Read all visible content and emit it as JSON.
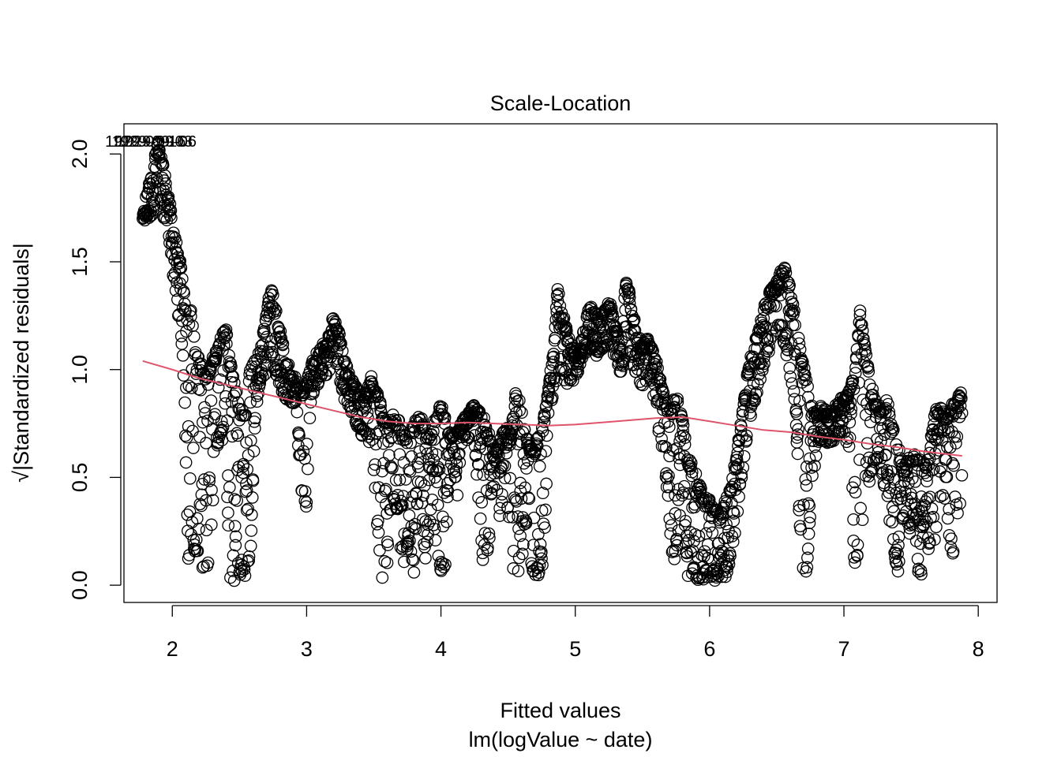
{
  "chart_data": {
    "type": "scatter",
    "title": "Scale-Location",
    "xlabel": "Fitted values",
    "xlabel_sub": "lm(logValue ~ date)",
    "ylabel": "√|Standardized residuals|",
    "xlim": [
      1.64,
      8.14
    ],
    "ylim": [
      -0.08,
      2.14
    ],
    "x_ticks": [
      2,
      3,
      4,
      5,
      6,
      7,
      8
    ],
    "y_ticks": [
      0.0,
      0.5,
      1.0,
      1.5,
      2.0
    ],
    "x_tick_labels": [
      "2",
      "3",
      "4",
      "5",
      "6",
      "7",
      "8"
    ],
    "y_tick_labels": [
      "0.0",
      "0.5",
      "1.0",
      "1.5",
      "2.0"
    ],
    "point_color": "#000000",
    "smooth_color": "#DF536B",
    "annotations": [
      {
        "text": "1929-09-16",
        "x": 1.8,
        "y": 2.06
      },
      {
        "text": "1929-09-03",
        "x": 1.85,
        "y": 2.06
      },
      {
        "text": "1929-09-06",
        "x": 1.88,
        "y": 2.06
      }
    ],
    "upper_envelope": [
      [
        1.78,
        1.73
      ],
      [
        1.82,
        1.86
      ],
      [
        1.86,
        1.95
      ],
      [
        1.89,
        2.06
      ],
      [
        1.93,
        1.96
      ],
      [
        1.96,
        1.85
      ],
      [
        1.99,
        1.75
      ],
      [
        2.02,
        1.62
      ],
      [
        2.05,
        1.55
      ],
      [
        2.08,
        1.4
      ],
      [
        2.1,
        1.28
      ],
      [
        2.12,
        1.24
      ],
      [
        2.14,
        1.3
      ],
      [
        2.17,
        1.1
      ],
      [
        2.2,
        1.06
      ],
      [
        2.24,
        1.0
      ],
      [
        2.28,
        1.02
      ],
      [
        2.32,
        1.1
      ],
      [
        2.36,
        1.16
      ],
      [
        2.4,
        1.19
      ],
      [
        2.43,
        1.05
      ],
      [
        2.47,
        0.92
      ],
      [
        2.5,
        0.85
      ],
      [
        2.54,
        0.8
      ],
      [
        2.58,
        1.0
      ],
      [
        2.62,
        1.06
      ],
      [
        2.66,
        1.1
      ],
      [
        2.7,
        1.28
      ],
      [
        2.73,
        1.4
      ],
      [
        2.76,
        1.32
      ],
      [
        2.8,
        1.2
      ],
      [
        2.84,
        1.08
      ],
      [
        2.88,
        1.0
      ],
      [
        2.92,
        0.96
      ],
      [
        2.96,
        0.92
      ],
      [
        3.0,
        0.95
      ],
      [
        3.03,
        1.02
      ],
      [
        3.07,
        1.08
      ],
      [
        3.12,
        1.12
      ],
      [
        3.16,
        1.15
      ],
      [
        3.2,
        1.26
      ],
      [
        3.24,
        1.18
      ],
      [
        3.28,
        1.05
      ],
      [
        3.32,
        0.98
      ],
      [
        3.36,
        0.93
      ],
      [
        3.4,
        0.9
      ],
      [
        3.44,
        0.88
      ],
      [
        3.48,
        0.97
      ],
      [
        3.52,
        0.92
      ],
      [
        3.56,
        0.82
      ],
      [
        3.6,
        0.75
      ],
      [
        3.64,
        0.8
      ],
      [
        3.68,
        0.78
      ],
      [
        3.72,
        0.7
      ],
      [
        3.76,
        0.72
      ],
      [
        3.8,
        0.76
      ],
      [
        3.84,
        0.8
      ],
      [
        3.88,
        0.74
      ],
      [
        3.92,
        0.68
      ],
      [
        3.96,
        0.8
      ],
      [
        4.0,
        0.84
      ],
      [
        4.04,
        0.78
      ],
      [
        4.08,
        0.7
      ],
      [
        4.12,
        0.72
      ],
      [
        4.16,
        0.77
      ],
      [
        4.2,
        0.8
      ],
      [
        4.24,
        0.84
      ],
      [
        4.28,
        0.82
      ],
      [
        4.32,
        0.78
      ],
      [
        4.36,
        0.7
      ],
      [
        4.4,
        0.62
      ],
      [
        4.44,
        0.68
      ],
      [
        4.48,
        0.74
      ],
      [
        4.52,
        0.7
      ],
      [
        4.56,
        0.92
      ],
      [
        4.6,
        0.82
      ],
      [
        4.64,
        0.7
      ],
      [
        4.68,
        0.64
      ],
      [
        4.72,
        0.7
      ],
      [
        4.76,
        0.76
      ],
      [
        4.8,
        0.92
      ],
      [
        4.84,
        1.1
      ],
      [
        4.87,
        1.4
      ],
      [
        4.9,
        1.28
      ],
      [
        4.94,
        1.18
      ],
      [
        4.98,
        1.1
      ],
      [
        5.02,
        1.06
      ],
      [
        5.06,
        1.2
      ],
      [
        5.1,
        1.3
      ],
      [
        5.14,
        1.28
      ],
      [
        5.18,
        1.24
      ],
      [
        5.22,
        1.3
      ],
      [
        5.26,
        1.32
      ],
      [
        5.3,
        1.2
      ],
      [
        5.34,
        1.14
      ],
      [
        5.38,
        1.44
      ],
      [
        5.42,
        1.3
      ],
      [
        5.46,
        1.18
      ],
      [
        5.5,
        1.12
      ],
      [
        5.54,
        1.16
      ],
      [
        5.58,
        1.1
      ],
      [
        5.62,
        1.0
      ],
      [
        5.66,
        0.9
      ],
      [
        5.7,
        0.8
      ],
      [
        5.73,
        0.86
      ],
      [
        5.76,
        0.88
      ],
      [
        5.8,
        0.76
      ],
      [
        5.84,
        0.6
      ],
      [
        5.88,
        0.56
      ],
      [
        5.92,
        0.48
      ],
      [
        5.96,
        0.42
      ],
      [
        6.0,
        0.4
      ],
      [
        6.04,
        0.36
      ],
      [
        6.08,
        0.34
      ],
      [
        6.12,
        0.4
      ],
      [
        6.16,
        0.48
      ],
      [
        6.2,
        0.6
      ],
      [
        6.24,
        0.8
      ],
      [
        6.28,
        0.98
      ],
      [
        6.32,
        1.1
      ],
      [
        6.36,
        1.18
      ],
      [
        6.4,
        1.28
      ],
      [
        6.44,
        1.36
      ],
      [
        6.48,
        1.4
      ],
      [
        6.52,
        1.45
      ],
      [
        6.56,
        1.48
      ],
      [
        6.6,
        1.38
      ],
      [
        6.64,
        1.24
      ],
      [
        6.68,
        1.08
      ],
      [
        6.72,
        0.96
      ],
      [
        6.76,
        0.84
      ],
      [
        6.8,
        0.82
      ],
      [
        6.84,
        0.84
      ],
      [
        6.88,
        0.8
      ],
      [
        6.92,
        0.82
      ],
      [
        6.96,
        0.86
      ],
      [
        7.0,
        0.88
      ],
      [
        7.04,
        0.94
      ],
      [
        7.08,
        0.98
      ],
      [
        7.12,
        1.28
      ],
      [
        7.16,
        1.1
      ],
      [
        7.2,
        0.94
      ],
      [
        7.24,
        0.86
      ],
      [
        7.28,
        0.82
      ],
      [
        7.32,
        0.88
      ],
      [
        7.36,
        0.74
      ],
      [
        7.4,
        0.66
      ],
      [
        7.44,
        0.56
      ],
      [
        7.48,
        0.6
      ],
      [
        7.52,
        0.62
      ],
      [
        7.56,
        0.6
      ],
      [
        7.6,
        0.56
      ],
      [
        7.64,
        0.66
      ],
      [
        7.68,
        0.82
      ],
      [
        7.72,
        0.84
      ],
      [
        7.76,
        0.78
      ],
      [
        7.8,
        0.84
      ],
      [
        7.84,
        0.86
      ],
      [
        7.88,
        0.92
      ]
    ],
    "lower_envelope": [
      [
        1.78,
        1.67
      ],
      [
        1.82,
        1.7
      ],
      [
        1.86,
        1.72
      ],
      [
        1.89,
        1.78
      ],
      [
        1.93,
        1.7
      ],
      [
        1.96,
        1.62
      ],
      [
        1.99,
        1.5
      ],
      [
        2.02,
        1.38
      ],
      [
        2.05,
        1.22
      ],
      [
        2.08,
        1.05
      ],
      [
        2.1,
        0.6
      ],
      [
        2.12,
        0.1
      ],
      [
        2.14,
        0.2
      ],
      [
        2.17,
        0.15
      ],
      [
        2.2,
        0.12
      ],
      [
        2.24,
        0.04
      ],
      [
        2.28,
        0.1
      ],
      [
        2.32,
        0.6
      ],
      [
        2.36,
        0.7
      ],
      [
        2.4,
        0.56
      ],
      [
        2.43,
        0.02
      ],
      [
        2.47,
        0.02
      ],
      [
        2.5,
        0.04
      ],
      [
        2.54,
        0.04
      ],
      [
        2.58,
        0.1
      ],
      [
        2.62,
        0.8
      ],
      [
        2.66,
        0.96
      ],
      [
        2.7,
        0.98
      ],
      [
        2.73,
        1.06
      ],
      [
        2.76,
        1.0
      ],
      [
        2.8,
        0.92
      ],
      [
        2.84,
        0.86
      ],
      [
        2.88,
        0.84
      ],
      [
        2.92,
        0.82
      ],
      [
        2.96,
        0.4
      ],
      [
        3.0,
        0.36
      ],
      [
        3.03,
        0.84
      ],
      [
        3.07,
        0.92
      ],
      [
        3.12,
        0.96
      ],
      [
        3.16,
        0.98
      ],
      [
        3.2,
        1.06
      ],
      [
        3.24,
        0.96
      ],
      [
        3.28,
        0.86
      ],
      [
        3.32,
        0.8
      ],
      [
        3.36,
        0.74
      ],
      [
        3.4,
        0.7
      ],
      [
        3.44,
        0.68
      ],
      [
        3.48,
        0.62
      ],
      [
        3.52,
        0.3
      ],
      [
        3.56,
        0.02
      ],
      [
        3.6,
        0.1
      ],
      [
        3.64,
        0.4
      ],
      [
        3.68,
        0.3
      ],
      [
        3.72,
        0.05
      ],
      [
        3.76,
        0.2
      ],
      [
        3.8,
        0.04
      ],
      [
        3.84,
        0.6
      ],
      [
        3.88,
        0.1
      ],
      [
        3.92,
        0.3
      ],
      [
        3.96,
        0.2
      ],
      [
        4.0,
        0.06
      ],
      [
        4.04,
        0.1
      ],
      [
        4.08,
        0.6
      ],
      [
        4.12,
        0.4
      ],
      [
        4.16,
        0.7
      ],
      [
        4.2,
        0.66
      ],
      [
        4.24,
        0.72
      ],
      [
        4.28,
        0.4
      ],
      [
        4.32,
        0.04
      ],
      [
        4.36,
        0.2
      ],
      [
        4.4,
        0.5
      ],
      [
        4.44,
        0.3
      ],
      [
        4.48,
        0.5
      ],
      [
        4.52,
        0.1
      ],
      [
        4.56,
        0.04
      ],
      [
        4.6,
        0.08
      ],
      [
        4.64,
        0.3
      ],
      [
        4.68,
        0.04
      ],
      [
        4.72,
        0.04
      ],
      [
        4.76,
        0.1
      ],
      [
        4.8,
        0.6
      ],
      [
        4.84,
        0.9
      ],
      [
        4.87,
        0.96
      ],
      [
        4.9,
        0.98
      ],
      [
        4.94,
        0.92
      ],
      [
        4.98,
        0.94
      ],
      [
        5.02,
        0.98
      ],
      [
        5.06,
        1.06
      ],
      [
        5.1,
        1.1
      ],
      [
        5.14,
        1.08
      ],
      [
        5.18,
        1.04
      ],
      [
        5.22,
        1.1
      ],
      [
        5.26,
        1.12
      ],
      [
        5.3,
        1.02
      ],
      [
        5.34,
        0.96
      ],
      [
        5.38,
        1.06
      ],
      [
        5.42,
        1.02
      ],
      [
        5.46,
        0.96
      ],
      [
        5.5,
        0.92
      ],
      [
        5.54,
        0.96
      ],
      [
        5.58,
        0.88
      ],
      [
        5.62,
        0.7
      ],
      [
        5.66,
        0.6
      ],
      [
        5.7,
        0.3
      ],
      [
        5.73,
        0.04
      ],
      [
        5.76,
        0.2
      ],
      [
        5.8,
        0.4
      ],
      [
        5.84,
        0.02
      ],
      [
        5.88,
        0.04
      ],
      [
        5.92,
        0.02
      ],
      [
        5.96,
        0.02
      ],
      [
        6.0,
        0.02
      ],
      [
        6.04,
        0.02
      ],
      [
        6.08,
        0.02
      ],
      [
        6.12,
        0.04
      ],
      [
        6.16,
        0.1
      ],
      [
        6.2,
        0.3
      ],
      [
        6.24,
        0.5
      ],
      [
        6.28,
        0.66
      ],
      [
        6.32,
        0.8
      ],
      [
        6.36,
        0.9
      ],
      [
        6.4,
        1.0
      ],
      [
        6.44,
        1.08
      ],
      [
        6.48,
        1.14
      ],
      [
        6.52,
        1.2
      ],
      [
        6.56,
        1.1
      ],
      [
        6.6,
        0.96
      ],
      [
        6.64,
        0.8
      ],
      [
        6.68,
        0.1
      ],
      [
        6.72,
        0.02
      ],
      [
        6.76,
        0.4
      ],
      [
        6.8,
        0.64
      ],
      [
        6.84,
        0.68
      ],
      [
        6.88,
        0.64
      ],
      [
        6.92,
        0.66
      ],
      [
        6.96,
        0.7
      ],
      [
        7.0,
        0.72
      ],
      [
        7.04,
        0.6
      ],
      [
        7.08,
        0.06
      ],
      [
        7.12,
        0.2
      ],
      [
        7.16,
        0.4
      ],
      [
        7.2,
        0.5
      ],
      [
        7.24,
        0.56
      ],
      [
        7.28,
        0.5
      ],
      [
        7.32,
        0.4
      ],
      [
        7.36,
        0.2
      ],
      [
        7.4,
        0.04
      ],
      [
        7.44,
        0.3
      ],
      [
        7.48,
        0.2
      ],
      [
        7.52,
        0.3
      ],
      [
        7.56,
        0.02
      ],
      [
        7.6,
        0.04
      ],
      [
        7.64,
        0.2
      ],
      [
        7.68,
        0.2
      ],
      [
        7.72,
        0.4
      ],
      [
        7.76,
        0.4
      ],
      [
        7.8,
        0.1
      ],
      [
        7.84,
        0.14
      ],
      [
        7.88,
        0.5
      ]
    ],
    "smooth_line": [
      [
        1.78,
        1.04
      ],
      [
        2.0,
        1.0
      ],
      [
        2.2,
        0.96
      ],
      [
        2.4,
        0.93
      ],
      [
        2.6,
        0.9
      ],
      [
        2.8,
        0.87
      ],
      [
        3.0,
        0.84
      ],
      [
        3.2,
        0.81
      ],
      [
        3.4,
        0.78
      ],
      [
        3.6,
        0.76
      ],
      [
        3.8,
        0.75
      ],
      [
        4.0,
        0.75
      ],
      [
        4.2,
        0.755
      ],
      [
        4.4,
        0.75
      ],
      [
        4.6,
        0.745
      ],
      [
        4.8,
        0.74
      ],
      [
        5.0,
        0.745
      ],
      [
        5.2,
        0.755
      ],
      [
        5.4,
        0.765
      ],
      [
        5.6,
        0.775
      ],
      [
        5.8,
        0.78
      ],
      [
        6.0,
        0.76
      ],
      [
        6.2,
        0.74
      ],
      [
        6.4,
        0.72
      ],
      [
        6.6,
        0.71
      ],
      [
        6.8,
        0.69
      ],
      [
        7.0,
        0.675
      ],
      [
        7.2,
        0.655
      ],
      [
        7.4,
        0.64
      ],
      [
        7.6,
        0.62
      ],
      [
        7.88,
        0.6
      ]
    ]
  }
}
